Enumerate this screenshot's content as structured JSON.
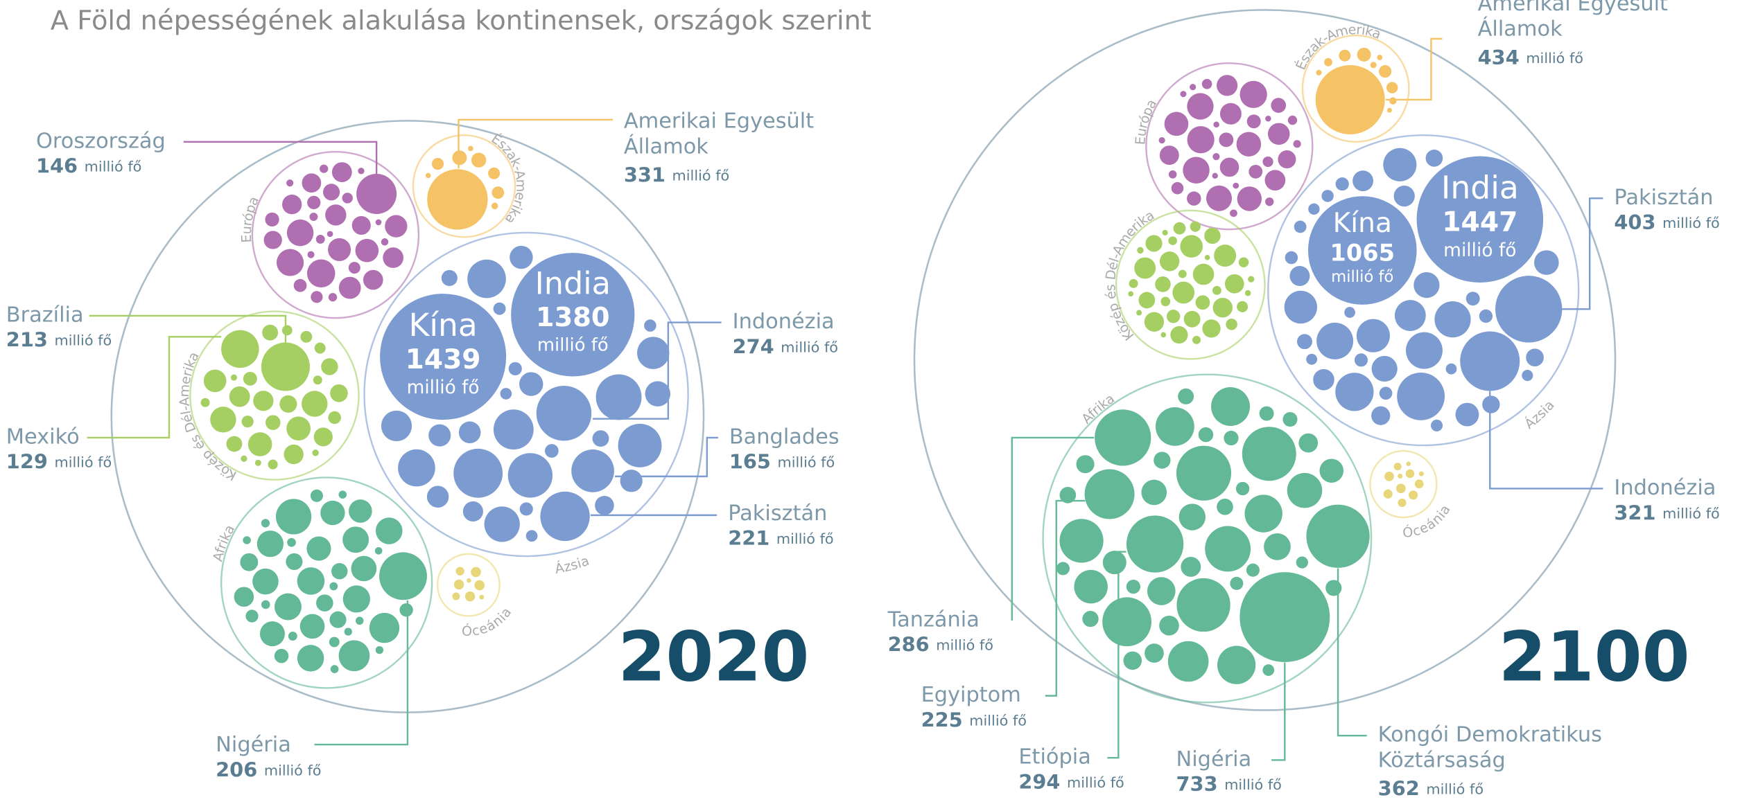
{
  "title": "A Föld népességének alakulása kontinensek, országok szerint",
  "unit": "millió fő",
  "panels": [
    {
      "year": "2020",
      "continents": [
        {
          "name": "Európa",
          "color": "#b06fb0",
          "countries": [
            {
              "name": [
                "Oroszország"
              ],
              "value": 146
            }
          ]
        },
        {
          "name": "Észak-Amerika",
          "color": "#f5c265",
          "countries": [
            {
              "name": [
                "Amerikai Egyesült",
                "Államok"
              ],
              "value": 331
            }
          ]
        },
        {
          "name": "Közép és Dél-Amerika",
          "color": "#a6cf63",
          "countries": [
            {
              "name": [
                "Brazília"
              ],
              "value": 213
            },
            {
              "name": [
                "Mexikó"
              ],
              "value": 129
            }
          ]
        },
        {
          "name": "Afrika",
          "color": "#62b897",
          "countries": [
            {
              "name": [
                "Nigéria"
              ],
              "value": 206
            }
          ]
        },
        {
          "name": "Ázsia",
          "color": "#7b9bd1",
          "countries": [
            {
              "name": [
                "Kína"
              ],
              "value": 1439
            },
            {
              "name": [
                "India"
              ],
              "value": 1380
            },
            {
              "name": [
                "Indonézia"
              ],
              "value": 274
            },
            {
              "name": [
                "Banglades"
              ],
              "value": 165
            },
            {
              "name": [
                "Pakisztán"
              ],
              "value": 221
            }
          ]
        },
        {
          "name": "Óceánia",
          "color": "#e8d77a",
          "countries": []
        }
      ]
    },
    {
      "year": "2100",
      "continents": [
        {
          "name": "Európa",
          "color": "#b06fb0",
          "countries": []
        },
        {
          "name": "Észak-Amerika",
          "color": "#f5c265",
          "countries": [
            {
              "name": [
                "Amerikai Egyesült",
                "Államok"
              ],
              "value": 434
            }
          ]
        },
        {
          "name": "Közép és Dél-Amerika",
          "color": "#a6cf63",
          "countries": []
        },
        {
          "name": "Afrika",
          "color": "#62b897",
          "countries": [
            {
              "name": [
                "Tanzánia"
              ],
              "value": 286
            },
            {
              "name": [
                "Egyiptom"
              ],
              "value": 225
            },
            {
              "name": [
                "Etiópia"
              ],
              "value": 294
            },
            {
              "name": [
                "Nigéria"
              ],
              "value": 733
            },
            {
              "name": [
                "Kongói Demokratikus",
                "Köztársaság"
              ],
              "value": 362
            }
          ]
        },
        {
          "name": "Ázsia",
          "color": "#7b9bd1",
          "countries": [
            {
              "name": [
                "Kína"
              ],
              "value": 1065
            },
            {
              "name": [
                "India"
              ],
              "value": 1447
            },
            {
              "name": [
                "Pakisztán"
              ],
              "value": 403
            },
            {
              "name": [
                "Indonézia"
              ],
              "value": 321
            }
          ]
        },
        {
          "name": "Óceánia",
          "color": "#e8d77a",
          "countries": []
        }
      ]
    }
  ]
}
